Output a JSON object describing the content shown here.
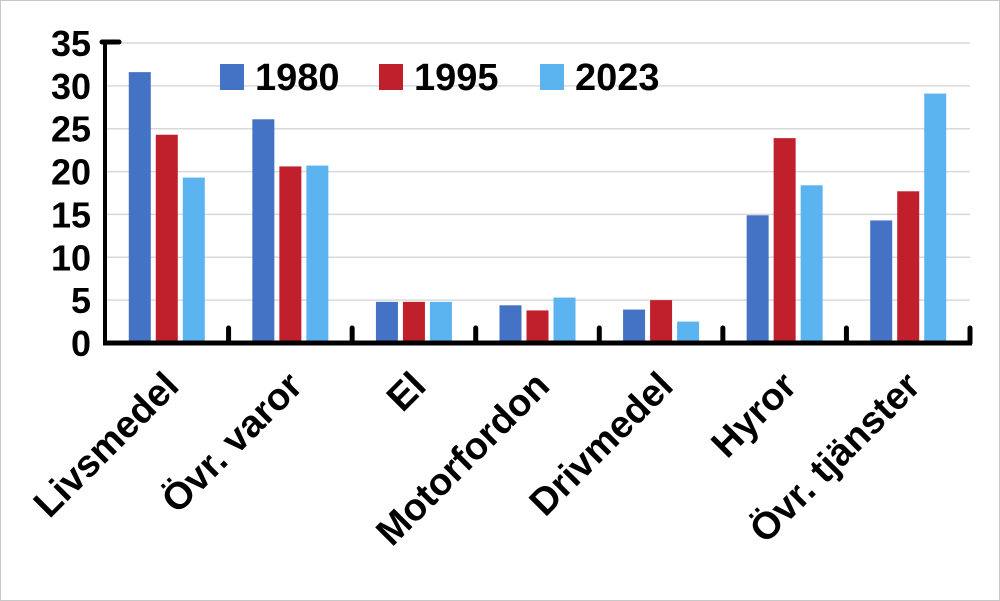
{
  "chart_data": {
    "type": "bar",
    "categories": [
      "Livsmedel",
      "Övr. varor",
      "El",
      "Motorfordon",
      "Drivmedel",
      "Hyror",
      "Övr. tjänster"
    ],
    "series": [
      {
        "name": "1980",
        "color": "#4472C4",
        "values": [
          31.6,
          26.1,
          4.8,
          4.4,
          3.9,
          14.9,
          14.3
        ]
      },
      {
        "name": "1995",
        "color": "#C0202C",
        "values": [
          24.3,
          20.6,
          4.8,
          3.8,
          5.0,
          23.9,
          17.7
        ]
      },
      {
        "name": "2023",
        "color": "#5BB4F0",
        "values": [
          19.3,
          20.7,
          4.8,
          5.3,
          2.5,
          18.4,
          29.1
        ]
      }
    ],
    "ylim": [
      0,
      35
    ],
    "yticks": [
      0,
      5,
      10,
      15,
      20,
      25,
      30,
      35
    ],
    "grid": true,
    "legend": "top",
    "gridline_color": "#D9D9D9",
    "axis_color": "#000000"
  }
}
